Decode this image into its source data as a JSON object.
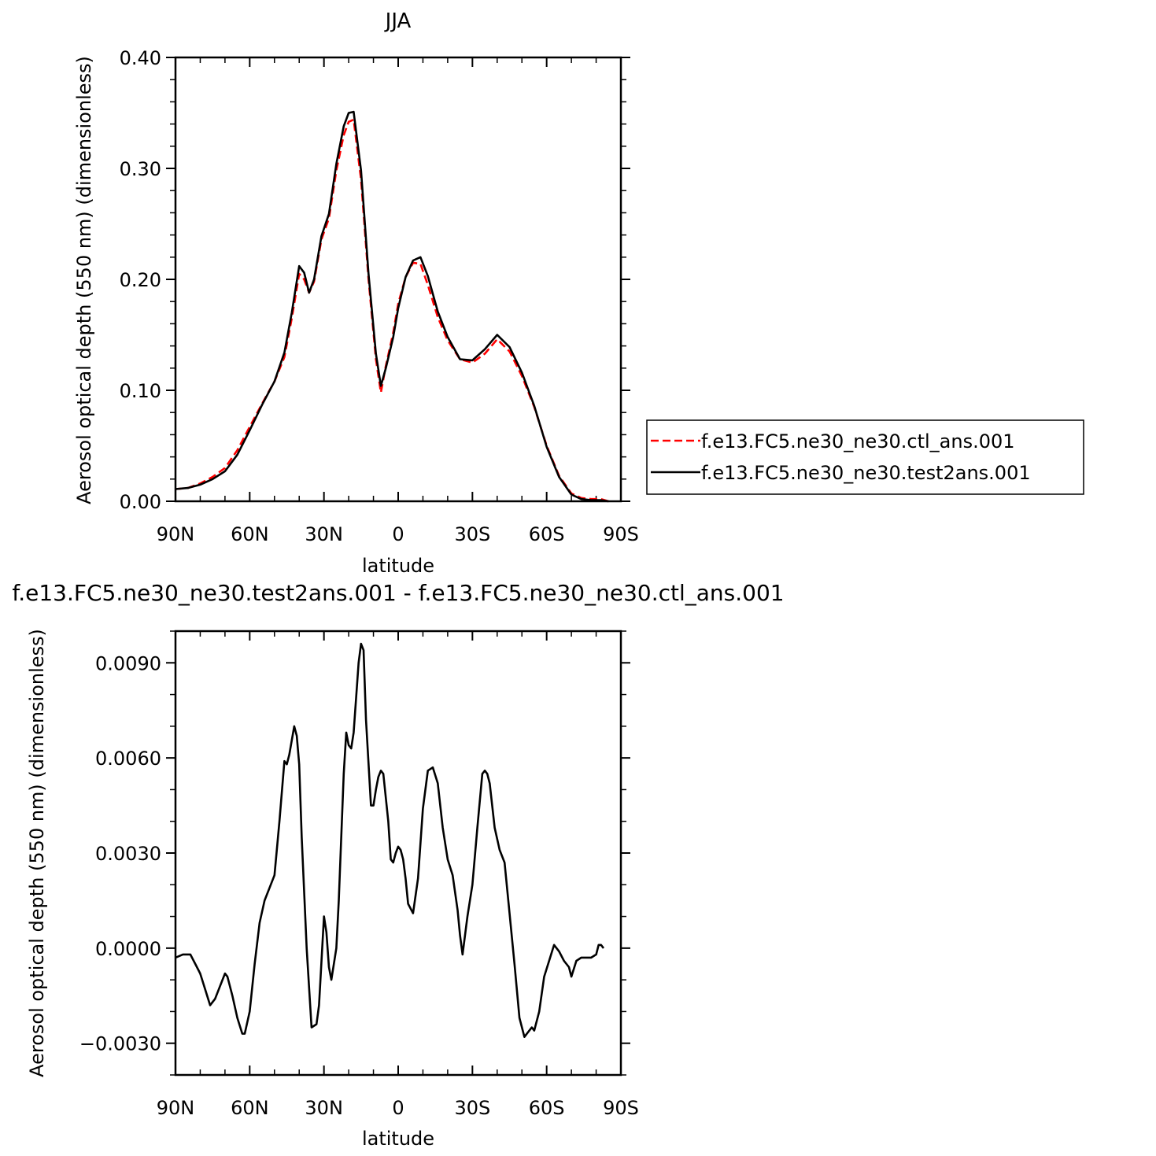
{
  "colors": {
    "ctl": "#ff0000",
    "test": "#000000",
    "axis": "#000000",
    "background": "#ffffff"
  },
  "chart_data": [
    {
      "type": "line",
      "title": "JJA",
      "xlabel": "latitude",
      "ylabel": "Aerosol optical depth (550 nm) (dimensionless)",
      "xlim": [
        90,
        -90
      ],
      "ylim": [
        0.0,
        0.4
      ],
      "x_ticks": [
        90,
        60,
        30,
        0,
        -30,
        -60,
        -90
      ],
      "x_tick_labels": [
        "90N",
        "60N",
        "30N",
        "0",
        "30S",
        "60S",
        "90S"
      ],
      "y_ticks": [
        0.0,
        0.1,
        0.2,
        0.3,
        0.4
      ],
      "y_tick_labels": [
        "0.00",
        "0.10",
        "0.20",
        "0.30",
        "0.40"
      ],
      "grid": false,
      "legend_position": "right",
      "series": [
        {
          "name": "f.e13.FC5.ne30_ne30.ctl_ans.001",
          "color": "#ff0000",
          "dash": "dashed",
          "x": [
            90,
            85,
            80,
            75,
            70,
            65,
            60,
            55,
            50,
            46,
            43,
            40,
            38,
            36,
            34,
            31,
            28,
            25,
            22,
            20,
            18,
            15,
            12,
            9,
            7,
            5,
            2,
            0,
            -3,
            -6,
            -9,
            -12,
            -16,
            -20,
            -25,
            -30,
            -35,
            -40,
            -45,
            -50,
            -55,
            -60,
            -65,
            -70,
            -74,
            -78,
            -82,
            -85
          ],
          "y": [
            0.011,
            0.012,
            0.016,
            0.022,
            0.03,
            0.046,
            0.067,
            0.088,
            0.108,
            0.13,
            0.165,
            0.205,
            0.2,
            0.188,
            0.198,
            0.236,
            0.255,
            0.298,
            0.33,
            0.342,
            0.344,
            0.29,
            0.2,
            0.128,
            0.098,
            0.122,
            0.152,
            0.178,
            0.202,
            0.215,
            0.214,
            0.195,
            0.166,
            0.145,
            0.128,
            0.125,
            0.133,
            0.146,
            0.135,
            0.113,
            0.085,
            0.05,
            0.023,
            0.007,
            0.003,
            0.002,
            0.002,
            0.0
          ]
        },
        {
          "name": "f.e13.FC5.ne30_ne30.test2ans.001",
          "color": "#000000",
          "dash": "solid",
          "x": [
            90,
            85,
            80,
            75,
            70,
            65,
            60,
            55,
            50,
            46,
            43,
            40,
            38,
            36,
            34,
            31,
            28,
            25,
            22,
            20,
            18,
            15,
            12,
            9,
            7,
            5,
            2,
            0,
            -3,
            -6,
            -9,
            -12,
            -16,
            -20,
            -25,
            -30,
            -35,
            -40,
            -45,
            -50,
            -55,
            -60,
            -65,
            -70,
            -74,
            -78,
            -82,
            -85
          ],
          "y": [
            0.011,
            0.012,
            0.015,
            0.02,
            0.027,
            0.042,
            0.064,
            0.087,
            0.108,
            0.134,
            0.17,
            0.212,
            0.206,
            0.188,
            0.2,
            0.239,
            0.259,
            0.304,
            0.338,
            0.35,
            0.351,
            0.298,
            0.205,
            0.133,
            0.104,
            0.12,
            0.148,
            0.174,
            0.202,
            0.217,
            0.22,
            0.203,
            0.171,
            0.148,
            0.128,
            0.127,
            0.137,
            0.15,
            0.139,
            0.116,
            0.086,
            0.049,
            0.022,
            0.006,
            0.002,
            0.001,
            0.001,
            0.0
          ]
        }
      ]
    },
    {
      "type": "line",
      "title": "f.e13.FC5.ne30_ne30.test2ans.001 - f.e13.FC5.ne30_ne30.ctl_ans.001",
      "xlabel": "latitude",
      "ylabel": "Aerosol optical depth (550 nm) (dimensionless)",
      "xlim": [
        90,
        -90
      ],
      "ylim": [
        -0.004,
        0.01
      ],
      "x_ticks": [
        90,
        60,
        30,
        0,
        -30,
        -60,
        -90
      ],
      "x_tick_labels": [
        "90N",
        "60N",
        "30N",
        "0",
        "30S",
        "60S",
        "90S"
      ],
      "y_ticks": [
        -0.003,
        0.0,
        0.003,
        0.006,
        0.009
      ],
      "y_tick_labels": [
        "−0.0030",
        "0.0000",
        "0.0030",
        "0.0060",
        "0.0090"
      ],
      "grid": false,
      "series": [
        {
          "color": "#000000",
          "dash": "solid",
          "x": [
            90,
            87,
            84,
            82,
            80,
            78,
            76,
            74,
            72,
            70,
            69,
            67,
            65,
            63,
            62,
            60,
            58,
            56,
            54,
            52,
            50,
            48,
            46,
            45,
            44,
            42,
            41,
            40,
            39,
            37,
            35,
            33,
            32,
            30,
            29,
            28,
            27,
            25,
            24,
            22,
            21,
            20,
            19,
            18,
            16,
            15,
            14,
            13,
            11,
            10,
            9,
            8,
            7,
            6,
            4,
            3,
            2,
            1,
            0,
            -1,
            -2,
            -3,
            -4,
            -6,
            -8,
            -9,
            -10,
            -12,
            -14,
            -16,
            -18,
            -20,
            -22,
            -24,
            -25,
            -26,
            -28,
            -30,
            -32,
            -34,
            -35,
            -36,
            -37,
            -39,
            -41,
            -43,
            -45,
            -47,
            -49,
            -51,
            -52,
            -54,
            -55,
            -57,
            -59,
            -61,
            -63,
            -65,
            -67,
            -69,
            -70,
            -72,
            -74,
            -76,
            -78,
            -80,
            -81,
            -82,
            -83
          ],
          "y": [
            -0.0003,
            -0.0002,
            -0.0002,
            -0.0005,
            -0.0008,
            -0.0013,
            -0.0018,
            -0.0016,
            -0.0012,
            -0.0008,
            -0.0009,
            -0.0015,
            -0.0022,
            -0.0027,
            -0.0027,
            -0.002,
            -0.0005,
            0.0008,
            0.0015,
            0.0019,
            0.0023,
            0.004,
            0.0059,
            0.0058,
            0.0061,
            0.007,
            0.0067,
            0.0058,
            0.0035,
            0.0,
            -0.0025,
            -0.0024,
            -0.0018,
            0.001,
            0.0005,
            -0.0006,
            -0.001,
            0.0,
            0.0015,
            0.0055,
            0.0068,
            0.0064,
            0.0063,
            0.0068,
            0.009,
            0.0096,
            0.0094,
            0.0072,
            0.0045,
            0.0045,
            0.005,
            0.0054,
            0.0056,
            0.0055,
            0.004,
            0.0028,
            0.0027,
            0.003,
            0.0032,
            0.0031,
            0.0028,
            0.0022,
            0.0014,
            0.0011,
            0.0022,
            0.0033,
            0.0044,
            0.0056,
            0.0057,
            0.0052,
            0.0038,
            0.0028,
            0.0023,
            0.0012,
            0.0004,
            -0.0002,
            0.001,
            0.002,
            0.0038,
            0.0055,
            0.0056,
            0.0055,
            0.0052,
            0.0038,
            0.0031,
            0.0027,
            0.0011,
            -0.0005,
            -0.0022,
            -0.0028,
            -0.0027,
            -0.0025,
            -0.0026,
            -0.002,
            -0.0009,
            -0.0004,
            0.0001,
            -0.0001,
            -0.0004,
            -0.0006,
            -0.0009,
            -0.0004,
            -0.0003,
            -0.0003,
            -0.0003,
            -0.0002,
            0.0001,
            0.0001,
            0.0
          ]
        }
      ]
    }
  ]
}
